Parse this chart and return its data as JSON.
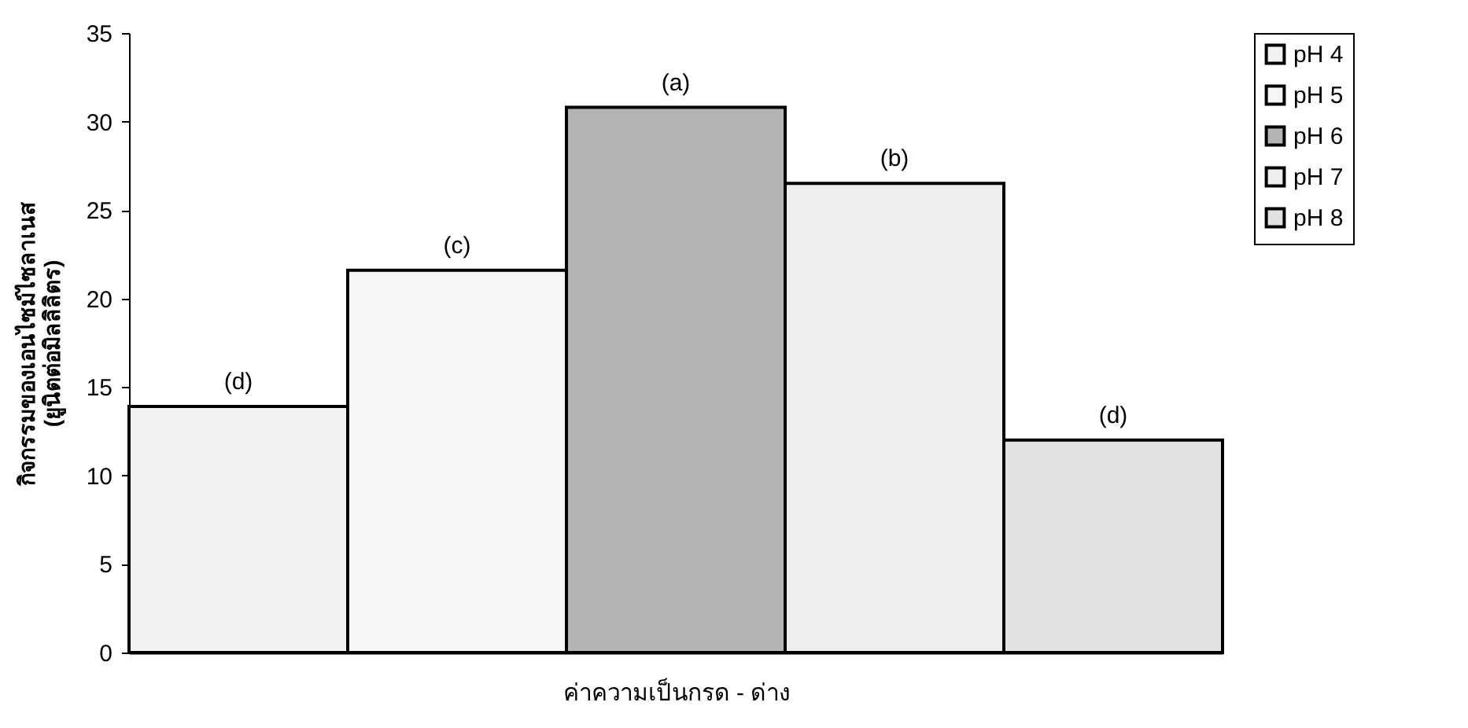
{
  "chart_data": {
    "type": "bar",
    "ylabel": "กิจกรรมของเอนไซม์ไซลาเนส\n(ยูนิตต่อมิลลิลิตร)",
    "xlabel": "ค่าความเป็นกรด - ด่าง",
    "categories": [
      null
    ],
    "series": [
      {
        "name": "pH 4",
        "color": "#f2f2f2",
        "values": [
          13.9
        ],
        "value_labels": [
          "(d)"
        ]
      },
      {
        "name": "pH 5",
        "color": "#f6f6f6",
        "values": [
          21.6
        ],
        "value_labels": [
          "(c)"
        ]
      },
      {
        "name": "pH 6",
        "color": "#b4b4b4",
        "values": [
          30.8
        ],
        "value_labels": [
          "(a)"
        ]
      },
      {
        "name": "pH 7",
        "color": "#eeeeee",
        "values": [
          26.5
        ],
        "value_labels": [
          "(b)"
        ]
      },
      {
        "name": "pH 8",
        "color": "#e2e2e2",
        "values": [
          12.0
        ],
        "value_labels": [
          "(d)"
        ]
      }
    ],
    "ylim": [
      0,
      35
    ],
    "yticks": [
      0,
      5,
      10,
      15,
      20,
      25,
      30,
      35
    ],
    "grid": false,
    "legend": "right"
  }
}
